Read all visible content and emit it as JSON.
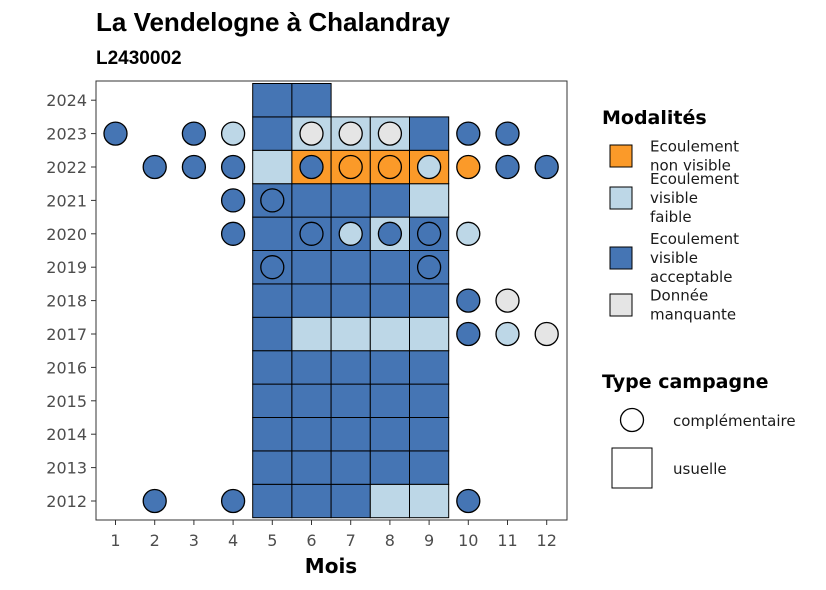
{
  "chart_data": {
    "type": "heatmap",
    "title": "La Vendelogne à Chalandray",
    "subtitle": "L2430002",
    "xlabel": "Mois",
    "ylabel": "",
    "x_ticks": [
      "1",
      "2",
      "3",
      "4",
      "5",
      "6",
      "7",
      "8",
      "9",
      "10",
      "11",
      "12"
    ],
    "y_ticks": [
      "2012",
      "2013",
      "2014",
      "2015",
      "2016",
      "2017",
      "2018",
      "2019",
      "2020",
      "2021",
      "2022",
      "2023",
      "2024"
    ],
    "xlim": [
      0.5,
      12.5
    ],
    "ylim": [
      2011.5,
      2024.5
    ],
    "colors": {
      "non_visible": "#fb9a29",
      "faible": "#bdd7e7",
      "acceptable": "#4575b4",
      "manquante": "#e5e5e5"
    },
    "legend": {
      "modalites_title": "Modalités",
      "modalites": [
        {
          "key": "non_visible",
          "lines": [
            "Ecoulement",
            "non visible"
          ]
        },
        {
          "key": "faible",
          "lines": [
            "Ecoulement",
            "visible",
            "faible"
          ]
        },
        {
          "key": "acceptable",
          "lines": [
            "Ecoulement",
            "visible",
            "acceptable"
          ]
        },
        {
          "key": "manquante",
          "lines": [
            "Donnée",
            "manquante"
          ]
        }
      ],
      "type_title": "Type campagne",
      "types": [
        {
          "shape": "circle",
          "label": "complémentaire"
        },
        {
          "shape": "square",
          "label": "usuelle"
        }
      ]
    },
    "usuelle": [
      {
        "year": 2012,
        "values": {
          "5": "acceptable",
          "6": "acceptable",
          "7": "acceptable",
          "8": "faible",
          "9": "faible"
        }
      },
      {
        "year": 2013,
        "values": {
          "5": "acceptable",
          "6": "acceptable",
          "7": "acceptable",
          "8": "acceptable",
          "9": "acceptable"
        }
      },
      {
        "year": 2014,
        "values": {
          "5": "acceptable",
          "6": "acceptable",
          "7": "acceptable",
          "8": "acceptable",
          "9": "acceptable"
        }
      },
      {
        "year": 2015,
        "values": {
          "5": "acceptable",
          "6": "acceptable",
          "7": "acceptable",
          "8": "acceptable",
          "9": "acceptable"
        }
      },
      {
        "year": 2016,
        "values": {
          "5": "acceptable",
          "6": "acceptable",
          "7": "acceptable",
          "8": "acceptable",
          "9": "acceptable"
        }
      },
      {
        "year": 2017,
        "values": {
          "5": "acceptable",
          "6": "faible",
          "7": "faible",
          "8": "faible",
          "9": "faible"
        }
      },
      {
        "year": 2018,
        "values": {
          "5": "acceptable",
          "6": "acceptable",
          "7": "acceptable",
          "8": "acceptable",
          "9": "acceptable"
        }
      },
      {
        "year": 2019,
        "values": {
          "5": "acceptable",
          "6": "acceptable",
          "7": "acceptable",
          "8": "acceptable",
          "9": "acceptable"
        }
      },
      {
        "year": 2020,
        "values": {
          "5": "acceptable",
          "6": "acceptable",
          "7": "acceptable",
          "8": "faible",
          "9": "acceptable"
        }
      },
      {
        "year": 2021,
        "values": {
          "5": "acceptable",
          "6": "acceptable",
          "7": "acceptable",
          "8": "acceptable",
          "9": "faible"
        }
      },
      {
        "year": 2022,
        "values": {
          "5": "faible",
          "6": "non_visible",
          "7": "non_visible",
          "8": "non_visible",
          "9": "non_visible"
        }
      },
      {
        "year": 2023,
        "values": {
          "5": "acceptable",
          "6": "faible",
          "7": "faible",
          "8": "faible",
          "9": "acceptable"
        }
      },
      {
        "year": 2024,
        "values": {
          "5": "acceptable",
          "6": "acceptable"
        }
      }
    ],
    "complementaire": [
      {
        "year": 2012,
        "values": {
          "2": "acceptable",
          "4": "acceptable",
          "10": "acceptable"
        }
      },
      {
        "year": 2017,
        "values": {
          "10": "acceptable",
          "11": "faible",
          "12": "manquante"
        }
      },
      {
        "year": 2018,
        "values": {
          "10": "acceptable",
          "11": "manquante"
        }
      },
      {
        "year": 2019,
        "values": {
          "5": "acceptable",
          "9": "acceptable"
        }
      },
      {
        "year": 2020,
        "values": {
          "4": "acceptable",
          "6": "acceptable",
          "7": "faible",
          "8": "acceptable",
          "9": "acceptable",
          "10": "faible"
        }
      },
      {
        "year": 2021,
        "values": {
          "4": "acceptable",
          "5": "acceptable"
        }
      },
      {
        "year": 2022,
        "values": {
          "2": "acceptable",
          "3": "acceptable",
          "4": "acceptable",
          "6": "acceptable",
          "7": "non_visible",
          "8": "non_visible",
          "9": "faible",
          "10": "non_visible",
          "11": "acceptable",
          "12": "acceptable"
        }
      },
      {
        "year": 2023,
        "values": {
          "1": "acceptable",
          "3": "acceptable",
          "4": "faible",
          "6": "manquante",
          "7": "manquante",
          "8": "manquante",
          "10": "acceptable",
          "11": "acceptable"
        }
      }
    ]
  }
}
